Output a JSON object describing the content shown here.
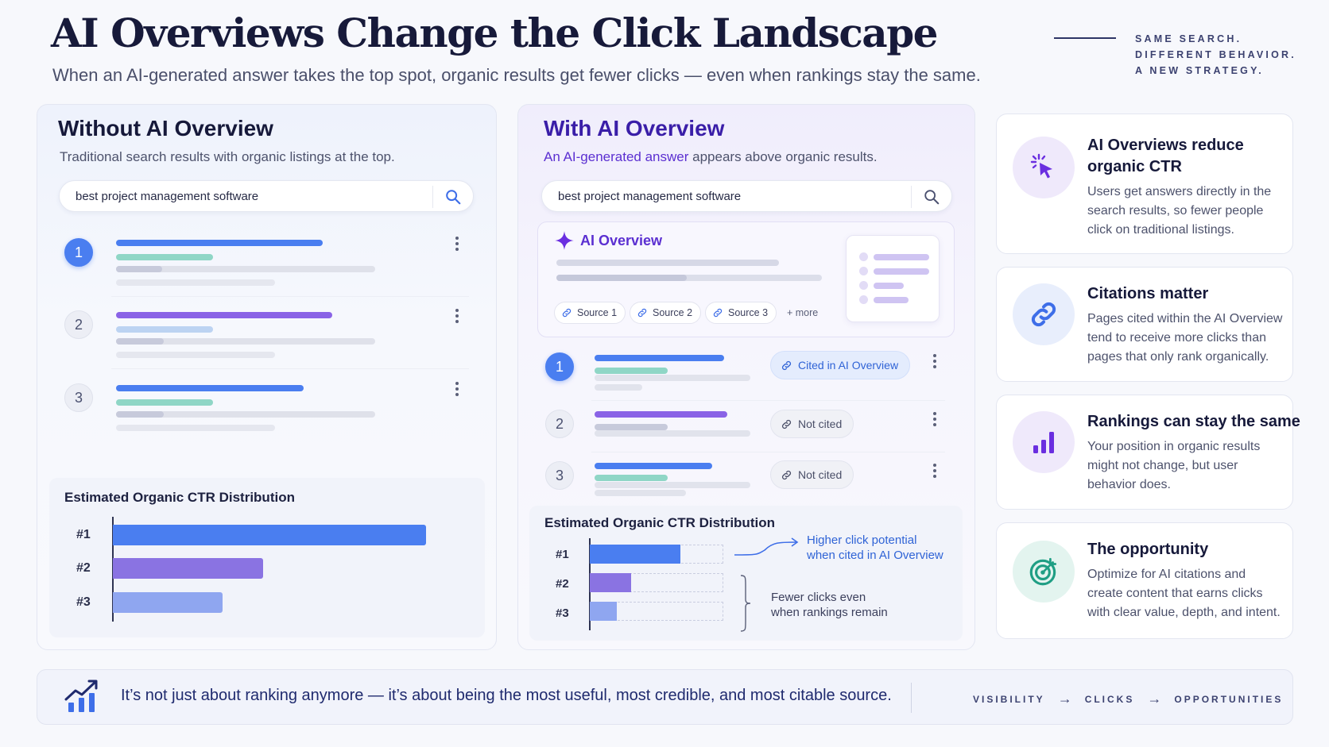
{
  "header": {
    "title": "AI Overviews Change the Click Landscape",
    "subtitle": "When an AI-generated answer takes the top spot, organic results get fewer clicks — even when rankings stay the same.",
    "tagline": [
      "SAME SEARCH.",
      "DIFFERENT BEHAVIOR.",
      "A NEW STRATEGY."
    ]
  },
  "left_panel": {
    "title": "Without AI Overview",
    "description": "Traditional search results with organic listings at the top.",
    "search_query": "best project management software",
    "results": [
      {
        "rank": "1",
        "title_color": "#4a7ef0"
      },
      {
        "rank": "2",
        "title_color": "#8a63e6"
      },
      {
        "rank": "3",
        "title_color": "#4a7ef0"
      }
    ],
    "ctr": {
      "title": "Estimated Organic CTR Distribution",
      "labels": [
        "#1",
        "#2",
        "#3"
      ],
      "values": [
        1.0,
        0.48,
        0.35
      ],
      "colors": [
        "#4a7ef0",
        "#8a73e2",
        "#8fa6f0"
      ]
    }
  },
  "right_panel": {
    "title": "With AI Overview",
    "description_highlight": "An AI-generated answer",
    "description_rest": " appears above organic results.",
    "search_query": "best project management software",
    "ai_overview": {
      "label": "AI Overview",
      "sources": [
        "Source 1",
        "Source 2",
        "Source 3"
      ],
      "more": "+ more"
    },
    "results": [
      {
        "rank": "1",
        "status": "Cited in AI Overview"
      },
      {
        "rank": "2",
        "status": "Not cited"
      },
      {
        "rank": "3",
        "status": "Not cited"
      }
    ],
    "ctr": {
      "title": "Estimated Organic CTR Distribution",
      "labels": [
        "#1",
        "#2",
        "#3"
      ],
      "values": [
        0.68,
        0.31,
        0.2
      ],
      "potential": [
        1.0,
        1.0,
        1.0
      ],
      "annotation_top": [
        "Higher click potential",
        "when cited in AI Overview"
      ],
      "annotation_bottom": [
        "Fewer clicks even",
        "when rankings remain"
      ]
    }
  },
  "cards": [
    {
      "icon": "cursor-click-icon",
      "title": [
        "AI Overviews reduce",
        "organic CTR"
      ],
      "body": [
        "Users get answers directly in the",
        "search results, so fewer people",
        "click on traditional listings."
      ],
      "accent": "#7a3ee8"
    },
    {
      "icon": "link-icon",
      "title": [
        "Citations matter"
      ],
      "body": [
        "Pages cited within the AI Overview",
        "tend to receive more clicks than",
        "pages that only rank organically."
      ],
      "accent": "#3e6ee8"
    },
    {
      "icon": "bar-chart-icon",
      "title": [
        "Rankings can stay the same"
      ],
      "body": [
        "Your position in organic results",
        "might not change, but user",
        "behavior does."
      ],
      "accent": "#7a3ee8"
    },
    {
      "icon": "target-icon",
      "title": [
        "The opportunity"
      ],
      "body": [
        "Optimize for AI citations and",
        "create content that earns clicks",
        "with clear value, depth, and intent."
      ],
      "accent": "#1f9e84"
    }
  ],
  "footer": {
    "text": "It’s not just about ranking anymore — it’s about being the most useful, most credible, and most citable source.",
    "funnel": [
      "VISIBILITY",
      "CLICKS",
      "OPPORTUNITIES"
    ]
  }
}
